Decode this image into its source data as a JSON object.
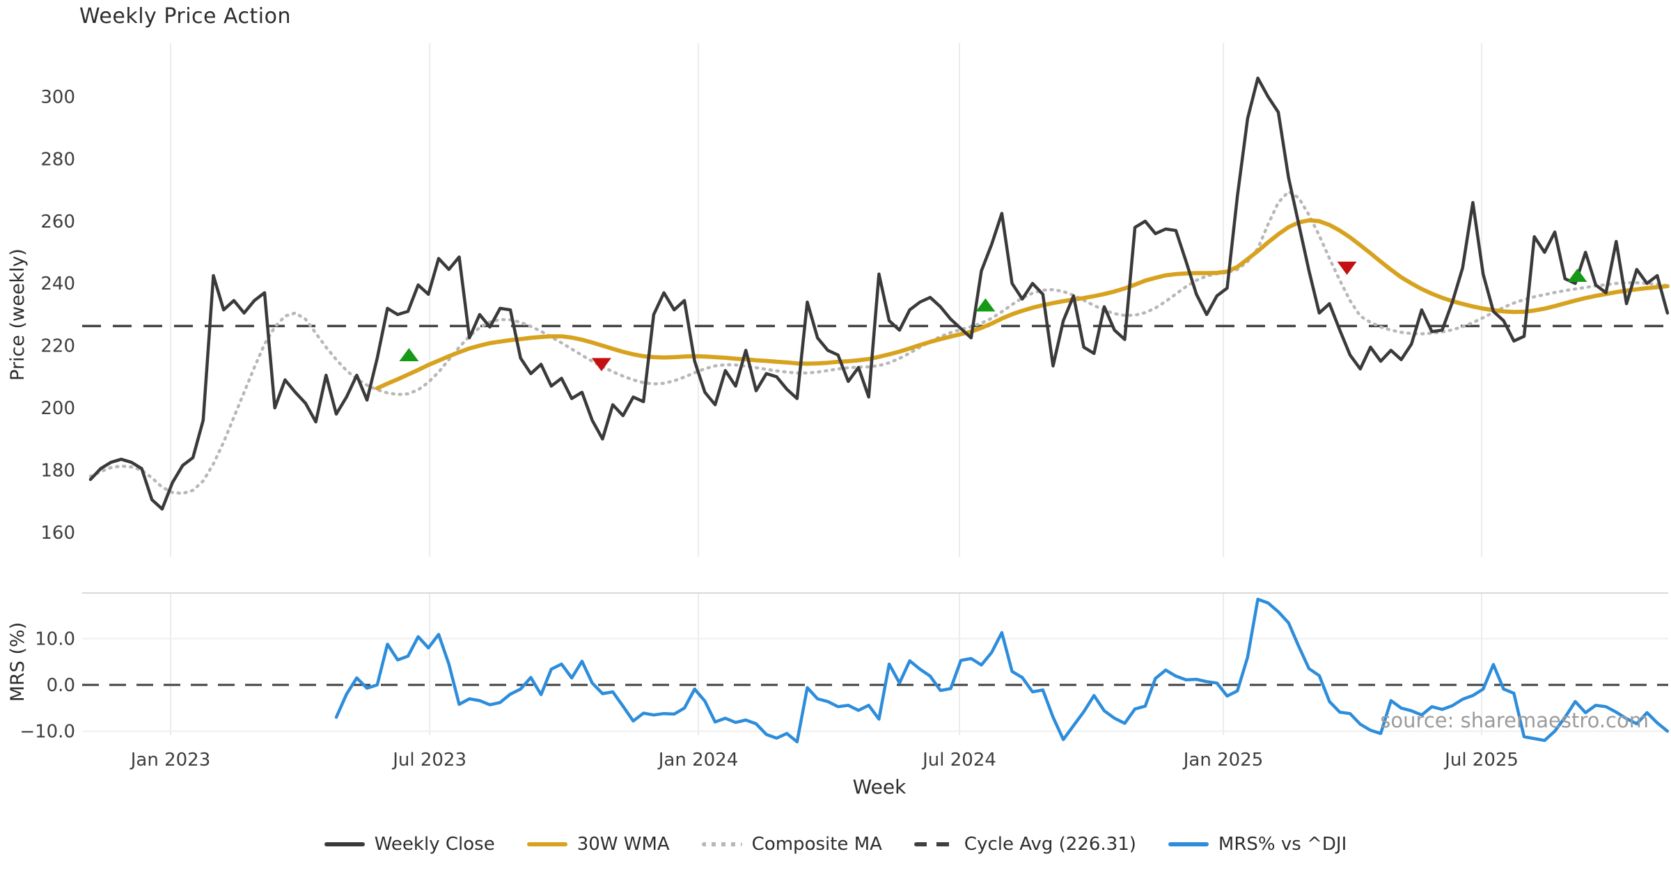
{
  "title": "Weekly Price Action",
  "watermark": "source: sharemaestro.com",
  "price_panel": {
    "ylabel": "Price (weekly)",
    "yticks": [
      "160",
      "180",
      "200",
      "220",
      "240",
      "260",
      "280",
      "300"
    ],
    "cycle_avg_value": 226.31
  },
  "mrs_panel": {
    "ylabel": "MRS (%)",
    "yticks": [
      "−10.0",
      "0.0",
      "10.0"
    ]
  },
  "xaxis": {
    "label": "Week",
    "ticks": [
      {
        "label": "Jan 2023",
        "week": 7.82
      },
      {
        "label": "Jul 2023",
        "week": 33.12
      },
      {
        "label": "Jan 2024",
        "week": 59.36
      },
      {
        "label": "Jul 2024",
        "week": 84.86
      },
      {
        "label": "Jan 2025",
        "week": 110.63
      },
      {
        "label": "Jul 2025",
        "week": 135.86
      }
    ]
  },
  "legend": {
    "items": [
      {
        "label": "Weekly Close",
        "style": "solid",
        "color": "#3a3a3a"
      },
      {
        "label": "30W WMA",
        "style": "solid",
        "color": "#d7a21e"
      },
      {
        "label": "Composite MA",
        "style": "dotted",
        "color": "#b8b8b8"
      },
      {
        "label": "Cycle Avg (226.31)",
        "style": "dashed",
        "color": "#3f3f3f"
      },
      {
        "label": "MRS% vs ^DJI",
        "style": "solid",
        "color": "#2d8ddb"
      }
    ]
  },
  "colors": {
    "close": "#3a3a3a",
    "wma": "#d7a21e",
    "composite": "#b8b8b8",
    "cycle": "#444444",
    "mrs": "#2d8ddb",
    "buy": "#169a16",
    "sell": "#c41010",
    "grid": "#ebebeb",
    "panel_border": "#d8d8d8",
    "tick_text": "#3d3d3d"
  },
  "chart_data": {
    "type": "line",
    "x_unit": "weeks since 2022-11-07 (one point per week)",
    "price_ylim": [
      155,
      310
    ],
    "mrs_ylim": [
      -15,
      20
    ],
    "grid": "vertical date gridlines only; MRS panel has lines at +10/-10 and dashed 0",
    "cycle_avg": 226.31,
    "series": [
      {
        "name": "Weekly Close",
        "axis": "price",
        "start_week": 0,
        "values": [
          177,
          180.5,
          182.5,
          183.5,
          182.5,
          180.5,
          170.5,
          167.5,
          176,
          181.5,
          184,
          196,
          242.5,
          231.5,
          234.5,
          230.5,
          234.5,
          237,
          200,
          209,
          205,
          201.5,
          195.5,
          210.5,
          198,
          203.5,
          210.5,
          202.5,
          216,
          232,
          230,
          231,
          239.5,
          236.5,
          248,
          244.5,
          248.5,
          222.5,
          230,
          226,
          232,
          231.5,
          216,
          211,
          214,
          207,
          209.5,
          203,
          205,
          196,
          190,
          201,
          197.5,
          203.5,
          202,
          230,
          237,
          231.5,
          234.5,
          215,
          205,
          201,
          212,
          207,
          218.5,
          205.5,
          211,
          210,
          206,
          203,
          234,
          222.5,
          218.5,
          217,
          208.5,
          213,
          203.5,
          243,
          228,
          225,
          231.5,
          234,
          235.5,
          232.5,
          228.5,
          225.5,
          222.5,
          244,
          252.5,
          262.5,
          240,
          235,
          240,
          236.5,
          213.5,
          228,
          236,
          219.5,
          217.5,
          232.5,
          225,
          222,
          258,
          260,
          256,
          257.5,
          257,
          247,
          236.5,
          230,
          236,
          238.5,
          268,
          293,
          306,
          300,
          295,
          274,
          259,
          244,
          230.5,
          233.5,
          225,
          217,
          212.5,
          219.5,
          215,
          218.5,
          215.5,
          220.5,
          231.5,
          224.5,
          225,
          234,
          245,
          266,
          243,
          231,
          228,
          221.5,
          223,
          255,
          250,
          256.5,
          241.5,
          240,
          250,
          239.5,
          237,
          253.5,
          233.5,
          244.5,
          240,
          242.5,
          230.5
        ]
      },
      {
        "name": "30W WMA",
        "axis": "price",
        "start_week": 28,
        "values": [
          206.3,
          207.8,
          209.2,
          210.7,
          212.2,
          213.8,
          215.2,
          216.6,
          217.9,
          219.1,
          220,
          220.8,
          221.3,
          221.8,
          222.1,
          222.5,
          222.8,
          223,
          223,
          222.6,
          221.9,
          221,
          220,
          219,
          218,
          217.2,
          216.6,
          216.3,
          216.2,
          216.3,
          216.5,
          216.6,
          216.5,
          216.3,
          216.1,
          215.8,
          215.6,
          215.3,
          215.1,
          214.8,
          214.6,
          214.3,
          214.2,
          214.3,
          214.5,
          214.8,
          215,
          215.3,
          215.7,
          216.4,
          217.2,
          218.1,
          219.1,
          220.2,
          221.2,
          222.1,
          222.9,
          223.7,
          224.5,
          225.7,
          227.1,
          228.7,
          230.1,
          231.2,
          232.2,
          233,
          233.7,
          234.3,
          234.8,
          235.3,
          235.9,
          236.6,
          237.4,
          238.4,
          239.6,
          240.9,
          241.8,
          242.6,
          243,
          243.2,
          243.3,
          243.3,
          243.4,
          243.8,
          245.3,
          247.8,
          250.4,
          253.2,
          255.8,
          258.1,
          259.6,
          260.3,
          260,
          258.8,
          257,
          254.8,
          252.3,
          249.7,
          247,
          244.4,
          242,
          240,
          238.2,
          236.7,
          235.4,
          234.3,
          233.4,
          232.6,
          231.9,
          231.4,
          231,
          230.8,
          230.9,
          231.3,
          231.9,
          232.7,
          233.6,
          234.5,
          235.3,
          236,
          236.6,
          237.2,
          237.7,
          238.1,
          238.5,
          238.8,
          239.1
        ]
      },
      {
        "name": "Composite MA",
        "axis": "price",
        "start_week": 0,
        "values": [
          178,
          179.5,
          180.8,
          181.3,
          181,
          180,
          177.5,
          174.5,
          172.8,
          172.5,
          173.5,
          176.5,
          182,
          189,
          197,
          205,
          213,
          220.5,
          226,
          229.5,
          230.5,
          228.5,
          224,
          219.5,
          215.5,
          212,
          209.3,
          207.3,
          205.8,
          204.8,
          204.3,
          204.5,
          205.8,
          208.2,
          211.5,
          215.5,
          219.5,
          223,
          225.8,
          227.6,
          228.4,
          228.3,
          227.5,
          226.2,
          224.6,
          222.8,
          220.9,
          218.9,
          216.9,
          215,
          213.2,
          211.6,
          210.2,
          209,
          208.1,
          207.7,
          207.9,
          208.7,
          209.9,
          211.3,
          212.6,
          213.5,
          213.9,
          213.8,
          213.4,
          212.9,
          212.4,
          211.9,
          211.5,
          211.2,
          211.2,
          211.5,
          212,
          212.5,
          212.9,
          213.1,
          213.2,
          213.6,
          214.5,
          215.9,
          217.6,
          219.5,
          221.3,
          222.9,
          224.2,
          225.2,
          226.1,
          227.2,
          228.8,
          230.9,
          233.2,
          235.3,
          236.9,
          237.8,
          238,
          237.4,
          236.2,
          234.6,
          232.9,
          231.4,
          230.3,
          229.7,
          229.8,
          230.6,
          232.1,
          234.2,
          236.6,
          239,
          241,
          242.4,
          243.1,
          243.5,
          244.5,
          247,
          251.2,
          259,
          266,
          269.5,
          267.5,
          262,
          255.4,
          248,
          241,
          234.5,
          229.5,
          227.5,
          226,
          225,
          224.3,
          223.9,
          223.8,
          224,
          224.4,
          225.1,
          226.1,
          227.4,
          229,
          230.7,
          232.3,
          233.7,
          234.8,
          235.7,
          236.4,
          237.1,
          237.7,
          238.2,
          238.7,
          239.2,
          239.6,
          240,
          240.2,
          240.2,
          240,
          239.7,
          239.3
        ]
      },
      {
        "name": "MRS% vs ^DJI",
        "axis": "mrs",
        "start_week": 24,
        "values": [
          -7,
          -2,
          1.5,
          -0.7,
          0,
          8.8,
          5.4,
          6.2,
          10.4,
          8,
          10.9,
          4.5,
          -4.2,
          -3,
          -3.4,
          -4.3,
          -3.8,
          -2,
          -0.9,
          1.6,
          -2.1,
          3.4,
          4.5,
          1.5,
          5.1,
          0.4,
          -1.9,
          -1.5,
          -4.6,
          -7.8,
          -6.1,
          -6.5,
          -6.2,
          -6.3,
          -5,
          -0.9,
          -3.5,
          -8,
          -7.2,
          -8.1,
          -7.6,
          -8.4,
          -10.7,
          -11.5,
          -10.5,
          -12.3,
          -0.6,
          -3,
          -3.6,
          -4.7,
          -4.4,
          -5.5,
          -4.4,
          -7.4,
          4.5,
          0.4,
          5.2,
          3.4,
          1.9,
          -1.2,
          -0.8,
          5.3,
          5.7,
          4.3,
          7,
          11.3,
          2.9,
          1.6,
          -1.5,
          -1.1,
          -7,
          -11.8,
          -8.8,
          -5.8,
          -2.3,
          -5.6,
          -7.2,
          -8.3,
          -5.2,
          -4.6,
          1.4,
          3.2,
          1.9,
          1.1,
          1.2,
          0.7,
          0.4,
          -2.4,
          -1.3,
          6,
          18.5,
          17.7,
          15.8,
          13.4,
          8.3,
          3.5,
          2,
          -3.6,
          -5.9,
          -6.2,
          -8.5,
          -9.8,
          -10.5,
          -3.4,
          -5,
          -5.6,
          -6.5,
          -4.7,
          -5.3,
          -4.5,
          -3.1,
          -2.3,
          -0.9,
          4.4,
          -0.9,
          -1.8,
          -11.2,
          -11.6,
          -12,
          -10,
          -7,
          -3.6,
          -6,
          -4.4,
          -4.7,
          -5.9,
          -7.3,
          -8.4,
          -6,
          -8.2,
          -10
        ]
      }
    ],
    "markers": [
      {
        "type": "buy",
        "week": 31.1,
        "price": 217
      },
      {
        "type": "sell",
        "week": 49.9,
        "price": 214
      },
      {
        "type": "buy",
        "week": 87.4,
        "price": 233
      },
      {
        "type": "sell",
        "week": 122.7,
        "price": 245
      },
      {
        "type": "buy",
        "week": 145.2,
        "price": 242.5
      }
    ]
  }
}
